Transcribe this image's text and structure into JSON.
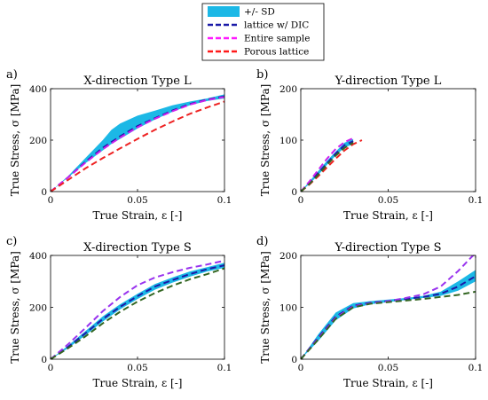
{
  "legend": [
    {
      "label": "+/- SD",
      "color": "#1cb8e6",
      "style": "band"
    },
    {
      "label": "lattice w/ DIC",
      "color": "#1a1aa8",
      "style": "dashed"
    },
    {
      "label": "Entire sample",
      "color": "#ff1aff",
      "style": "dashed"
    },
    {
      "label": "Porous lattice",
      "color": "#ff1a1a",
      "style": "dashed"
    }
  ],
  "chart_data": [
    {
      "type": "line",
      "panel_label": "a)",
      "title": "X-direction Type L",
      "xlabel": "True Strain, ε [-]",
      "ylabel": "True Stress, σ [MPa]",
      "xlim": [
        0,
        0.1
      ],
      "ylim": [
        0,
        400
      ],
      "xticks": [
        0,
        0.05,
        0.1
      ],
      "xtick_labels": [
        "0",
        "0.05",
        "0.1"
      ],
      "yticks": [
        0,
        200,
        400
      ],
      "ytick_labels": [
        "0",
        "200",
        "400"
      ],
      "band": {
        "name": "+/- SD",
        "color": "#1cb8e6",
        "x": [
          0,
          0.01,
          0.02,
          0.03,
          0.035,
          0.04,
          0.05,
          0.06,
          0.07,
          0.08,
          0.09,
          0.1
        ],
        "lower": [
          0,
          55,
          110,
          160,
          185,
          205,
          245,
          280,
          310,
          335,
          352,
          362
        ],
        "upper": [
          0,
          60,
          130,
          200,
          240,
          265,
          295,
          315,
          335,
          350,
          362,
          378
        ]
      },
      "series": [
        {
          "name": "lattice w/ DIC",
          "color": "#1a1aa8",
          "x": [
            0,
            0.01,
            0.02,
            0.03,
            0.04,
            0.05,
            0.06,
            0.07,
            0.08,
            0.09,
            0.1
          ],
          "y": [
            0,
            55,
            115,
            170,
            215,
            255,
            285,
            315,
            340,
            358,
            370
          ]
        },
        {
          "name": "Entire sample",
          "color": "#cc22ee",
          "x": [
            0,
            0.01,
            0.02,
            0.03,
            0.04,
            0.05,
            0.06,
            0.07,
            0.08,
            0.09,
            0.1
          ],
          "y": [
            0,
            55,
            112,
            165,
            210,
            250,
            283,
            312,
            338,
            356,
            368
          ]
        },
        {
          "name": "Porous lattice",
          "color": "#ee2222",
          "x": [
            0,
            0.01,
            0.02,
            0.03,
            0.04,
            0.05,
            0.06,
            0.07,
            0.08,
            0.09,
            0.1
          ],
          "y": [
            0,
            45,
            90,
            130,
            168,
            205,
            240,
            272,
            302,
            327,
            350
          ]
        }
      ]
    },
    {
      "type": "line",
      "panel_label": "b)",
      "title": "Y-direction Type L",
      "xlabel": "True Strain, ε [-]",
      "ylabel": "True Stress, σ [MPa]",
      "xlim": [
        0,
        0.1
      ],
      "ylim": [
        0,
        200
      ],
      "xticks": [
        0,
        0.05,
        0.1
      ],
      "xtick_labels": [
        "0",
        "0.05",
        "0.1"
      ],
      "yticks": [
        0,
        100,
        200
      ],
      "ytick_labels": [
        "0",
        "100",
        "200"
      ],
      "band": {
        "name": "+/- SD",
        "color": "#1cb8e6",
        "x": [
          0,
          0.005,
          0.01,
          0.015,
          0.02,
          0.025,
          0.03
        ],
        "lower": [
          0,
          15,
          32,
          52,
          70,
          86,
          92
        ],
        "upper": [
          0,
          20,
          40,
          60,
          78,
          95,
          102
        ]
      },
      "series": [
        {
          "name": "lattice w/ DIC",
          "color": "#1a1aa8",
          "x": [
            0,
            0.005,
            0.01,
            0.015,
            0.02,
            0.025,
            0.03
          ],
          "y": [
            0,
            17,
            36,
            55,
            74,
            90,
            98
          ]
        },
        {
          "name": "Entire sample",
          "color": "#cc22ee",
          "x": [
            0,
            0.005,
            0.01,
            0.015,
            0.02,
            0.025,
            0.03
          ],
          "y": [
            0,
            20,
            42,
            64,
            83,
            96,
            104
          ]
        },
        {
          "name": "Porous lattice",
          "color": "#ee2222",
          "x": [
            0,
            0.005,
            0.01,
            0.015,
            0.02,
            0.025,
            0.03,
            0.035
          ],
          "y": [
            0,
            14,
            30,
            47,
            64,
            80,
            92,
            100
          ]
        },
        {
          "name": "",
          "color": "#336622",
          "x": [
            0,
            0.005,
            0.01,
            0.015,
            0.02,
            0.025,
            0.03
          ],
          "y": [
            0,
            15,
            33,
            52,
            70,
            85,
            95
          ]
        }
      ]
    },
    {
      "type": "line",
      "panel_label": "c)",
      "title": "X-direction Type S",
      "xlabel": "True Strain, ε [-]",
      "ylabel": "True Stress, σ [MPa]",
      "xlim": [
        0,
        0.1
      ],
      "ylim": [
        0,
        400
      ],
      "xticks": [
        0,
        0.05,
        0.1
      ],
      "xtick_labels": [
        "0",
        "0.05",
        "0.1"
      ],
      "yticks": [
        0,
        200,
        400
      ],
      "ytick_labels": [
        "0",
        "200",
        "400"
      ],
      "band": {
        "name": "+/- SD",
        "color": "#1cb8e6",
        "x": [
          0,
          0.01,
          0.02,
          0.03,
          0.04,
          0.05,
          0.06,
          0.07,
          0.08,
          0.09,
          0.1
        ],
        "lower": [
          0,
          42,
          92,
          145,
          192,
          232,
          268,
          295,
          318,
          338,
          352
        ],
        "upper": [
          0,
          52,
          108,
          165,
          212,
          252,
          290,
          315,
          338,
          355,
          372
        ]
      },
      "series": [
        {
          "name": "lattice w/ DIC",
          "color": "#1a1aa8",
          "x": [
            0,
            0.01,
            0.02,
            0.03,
            0.04,
            0.05,
            0.06,
            0.07,
            0.08,
            0.09,
            0.1
          ],
          "y": [
            0,
            47,
            100,
            155,
            202,
            243,
            280,
            305,
            328,
            347,
            362
          ]
        },
        {
          "name": "Entire sample",
          "color": "#9933ee",
          "x": [
            0,
            0.01,
            0.02,
            0.03,
            0.04,
            0.05,
            0.06,
            0.07,
            0.08,
            0.09,
            0.1
          ],
          "y": [
            0,
            57,
            120,
            185,
            240,
            285,
            315,
            335,
            352,
            365,
            380
          ]
        },
        {
          "name": "",
          "color": "#336622",
          "x": [
            0,
            0.01,
            0.02,
            0.03,
            0.04,
            0.05,
            0.06,
            0.07,
            0.08,
            0.09,
            0.1
          ],
          "y": [
            0,
            42,
            88,
            138,
            183,
            222,
            255,
            283,
            308,
            328,
            350
          ]
        }
      ]
    },
    {
      "type": "line",
      "panel_label": "d)",
      "title": "Y-direction Type S",
      "xlabel": "True Strain, ε [-]",
      "ylabel": "True Stress, σ [MPa]",
      "xlim": [
        0,
        0.1
      ],
      "ylim": [
        0,
        200
      ],
      "xticks": [
        0,
        0.05,
        0.1
      ],
      "xtick_labels": [
        "0",
        "0.05",
        "0.1"
      ],
      "yticks": [
        0,
        100,
        200
      ],
      "ytick_labels": [
        "0",
        "100",
        "200"
      ],
      "band": {
        "name": "+/- SD",
        "color": "#1cb8e6",
        "x": [
          0,
          0.01,
          0.02,
          0.03,
          0.04,
          0.05,
          0.06,
          0.07,
          0.08,
          0.09,
          0.1
        ],
        "lower": [
          0,
          35,
          75,
          98,
          106,
          110,
          114,
          118,
          122,
          132,
          150
        ],
        "upper": [
          0,
          48,
          90,
          108,
          112,
          115,
          118,
          122,
          130,
          150,
          172
        ]
      },
      "series": [
        {
          "name": "lattice w/ DIC",
          "color": "#1a1aa8",
          "x": [
            0,
            0.01,
            0.02,
            0.03,
            0.04,
            0.05,
            0.06,
            0.07,
            0.08,
            0.09,
            0.1
          ],
          "y": [
            0,
            42,
            82,
            103,
            109,
            112,
            116,
            120,
            126,
            140,
            160
          ]
        },
        {
          "name": "Entire sample",
          "color": "#9933ee",
          "x": [
            0,
            0.01,
            0.02,
            0.03,
            0.04,
            0.05,
            0.06,
            0.07,
            0.08,
            0.09,
            0.1
          ],
          "y": [
            0,
            40,
            80,
            102,
            108,
            112,
            118,
            125,
            140,
            170,
            205
          ]
        },
        {
          "name": "",
          "color": "#336622",
          "x": [
            0,
            0.01,
            0.02,
            0.03,
            0.04,
            0.05,
            0.06,
            0.07,
            0.08,
            0.09,
            0.1
          ],
          "y": [
            0,
            38,
            78,
            100,
            107,
            110,
            113,
            116,
            120,
            124,
            130
          ]
        }
      ]
    }
  ]
}
